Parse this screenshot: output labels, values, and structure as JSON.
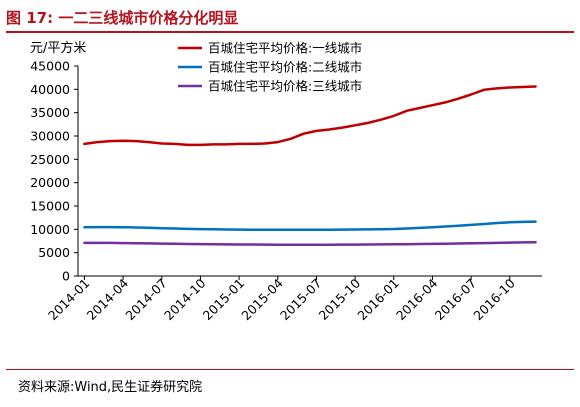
{
  "title": "图 17:  一二三线城市价格分化明显",
  "source": "资料来源:Wind,民生证券研究院",
  "chart_data": {
    "type": "line",
    "ylabel": "元/平方米",
    "ylim": [
      0,
      45000
    ],
    "yticks": [
      0,
      5000,
      10000,
      15000,
      20000,
      25000,
      30000,
      35000,
      40000,
      45000
    ],
    "ytick_labels": [
      "0",
      "5000",
      "10000",
      "15000",
      "20000",
      "25000",
      "30000",
      "35000",
      "40000",
      "45000"
    ],
    "x": [
      "2014-01",
      "2014-02",
      "2014-03",
      "2014-04",
      "2014-05",
      "2014-06",
      "2014-07",
      "2014-08",
      "2014-09",
      "2014-10",
      "2014-11",
      "2014-12",
      "2015-01",
      "2015-02",
      "2015-03",
      "2015-04",
      "2015-05",
      "2015-06",
      "2015-07",
      "2015-08",
      "2015-09",
      "2015-10",
      "2015-11",
      "2015-12",
      "2016-01",
      "2016-02",
      "2016-03",
      "2016-04",
      "2016-05",
      "2016-06",
      "2016-07",
      "2016-08",
      "2016-09",
      "2016-10",
      "2016-11",
      "2016-12"
    ],
    "xtick_labels": [
      "2014-01",
      "2014-04",
      "2014-07",
      "2014-10",
      "2015-01",
      "2015-04",
      "2015-07",
      "2015-10",
      "2016-01",
      "2016-04",
      "2016-07",
      "2016-10"
    ],
    "grid": false,
    "legend_position": "top",
    "series": [
      {
        "name": "百城住宅平均价格:一线城市",
        "color": "#c00000",
        "values": [
          28300,
          28700,
          28900,
          29000,
          28900,
          28700,
          28400,
          28300,
          28100,
          28100,
          28200,
          28200,
          28300,
          28300,
          28400,
          28700,
          29400,
          30500,
          31100,
          31400,
          31800,
          32300,
          32800,
          33500,
          34300,
          35400,
          36000,
          36600,
          37200,
          38000,
          38900,
          39900,
          40200,
          40400,
          40500,
          40600
        ]
      },
      {
        "name": "百城住宅平均价格:二线城市",
        "color": "#0070c0",
        "values": [
          10450,
          10470,
          10470,
          10460,
          10400,
          10330,
          10250,
          10170,
          10100,
          10040,
          10000,
          9970,
          9950,
          9930,
          9920,
          9910,
          9900,
          9900,
          9910,
          9920,
          9940,
          9960,
          9990,
          10020,
          10080,
          10180,
          10300,
          10440,
          10600,
          10780,
          10950,
          11150,
          11350,
          11500,
          11600,
          11650
        ]
      },
      {
        "name": "百城住宅平均价格:三线城市",
        "color": "#7030a0",
        "values": [
          7100,
          7100,
          7090,
          7060,
          7020,
          6980,
          6940,
          6900,
          6860,
          6830,
          6800,
          6780,
          6760,
          6740,
          6720,
          6710,
          6700,
          6700,
          6700,
          6710,
          6720,
          6730,
          6750,
          6770,
          6790,
          6820,
          6850,
          6880,
          6920,
          6960,
          7000,
          7050,
          7100,
          7150,
          7200,
          7250
        ]
      }
    ]
  }
}
